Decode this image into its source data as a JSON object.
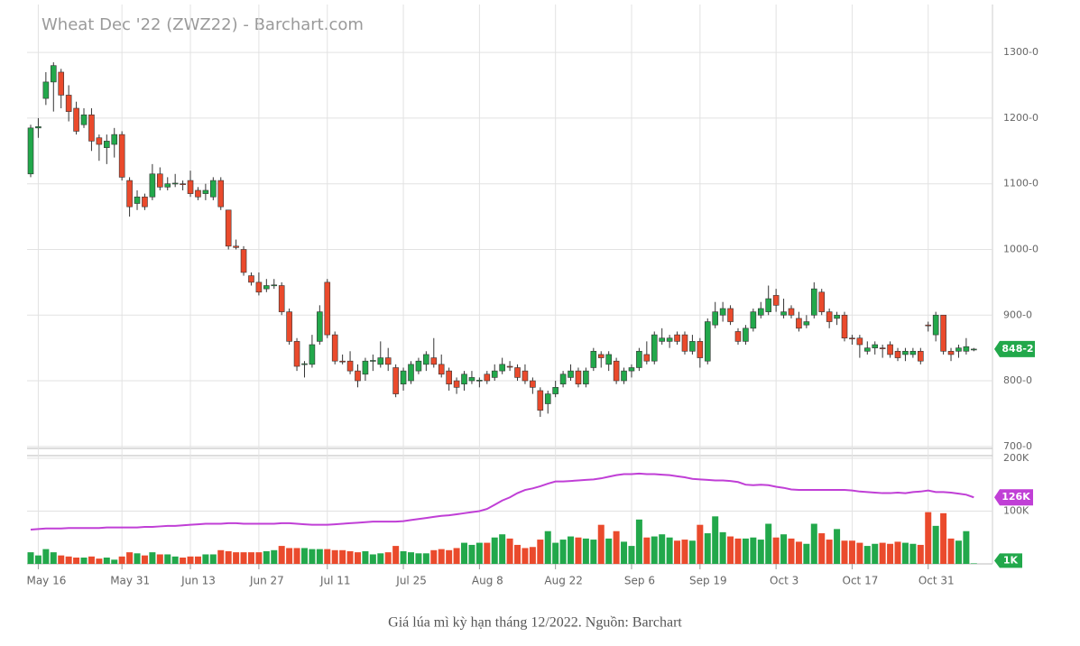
{
  "chart_data": [
    {
      "type": "candlestick",
      "title": "Wheat Dec '22 (ZWZ22) - Barchart.com",
      "categories": [
        null,
        "May 16",
        null,
        null,
        null,
        null,
        null,
        null,
        null,
        null,
        null,
        null,
        "May 31",
        null,
        null,
        null,
        null,
        null,
        null,
        null,
        null,
        "Jun 13",
        null,
        null,
        null,
        null,
        null,
        null,
        null,
        null,
        "Jun 27",
        null,
        null,
        null,
        null,
        null,
        null,
        null,
        null,
        "Jul 11",
        null,
        null,
        null,
        null,
        null,
        null,
        null,
        null,
        null,
        "Jul 25",
        null,
        null,
        null,
        null,
        null,
        null,
        null,
        null,
        null,
        "Aug 8",
        null,
        null,
        null,
        null,
        null,
        null,
        null,
        null,
        null,
        "Aug 22",
        null,
        null,
        null,
        null,
        null,
        null,
        null,
        null,
        null,
        "Sep 6",
        null,
        null,
        null,
        null,
        null,
        null,
        null,
        null,
        "Sep 19",
        null,
        null,
        null,
        null,
        null,
        null,
        null,
        null,
        null,
        "Oct 3",
        null,
        null,
        null,
        null,
        null,
        null,
        null,
        null,
        null,
        "Oct 17",
        null,
        null,
        null,
        null,
        null,
        null,
        null,
        null,
        null,
        "Oct 31",
        null,
        null,
        null,
        null,
        null,
        null
      ],
      "open": [
        1115,
        1185,
        1230,
        1255,
        1270,
        1235,
        1215,
        1190,
        1205,
        1170,
        1155,
        1160,
        1175,
        1105,
        1070,
        1080,
        1080,
        1115,
        1095,
        1100,
        1100,
        1105,
        1090,
        1085,
        1080,
        1105,
        1060,
        1005,
        1000,
        960,
        950,
        940,
        945,
        945,
        905,
        860,
        825,
        825,
        860,
        950,
        870,
        830,
        830,
        815,
        810,
        830,
        825,
        835,
        820,
        795,
        800,
        815,
        825,
        835,
        825,
        815,
        800,
        795,
        800,
        800,
        810,
        805,
        815,
        822,
        820,
        815,
        800,
        785,
        765,
        780,
        795,
        805,
        815,
        795,
        820,
        840,
        825,
        830,
        800,
        815,
        820,
        840,
        830,
        860,
        860,
        870,
        870,
        845,
        860,
        830,
        885,
        900,
        910,
        875,
        860,
        880,
        900,
        905,
        930,
        900,
        910,
        895,
        885,
        900,
        935,
        905,
        895,
        900,
        865,
        865,
        845,
        850,
        850,
        855,
        845,
        840,
        840,
        845,
        885,
        870,
        900,
        845,
        845,
        845,
        848
      ],
      "high": [
        1190,
        1200,
        1270,
        1285,
        1275,
        1250,
        1225,
        1215,
        1215,
        1175,
        1175,
        1185,
        1180,
        1110,
        1090,
        1085,
        1130,
        1125,
        1110,
        1115,
        1105,
        1120,
        1095,
        1100,
        1110,
        1110,
        1060,
        1015,
        1005,
        965,
        965,
        955,
        955,
        950,
        910,
        865,
        830,
        870,
        915,
        955,
        875,
        840,
        845,
        825,
        835,
        840,
        860,
        850,
        825,
        820,
        830,
        835,
        845,
        865,
        840,
        820,
        805,
        815,
        815,
        805,
        815,
        825,
        835,
        830,
        825,
        825,
        805,
        790,
        785,
        800,
        815,
        825,
        820,
        820,
        850,
        845,
        845,
        835,
        820,
        825,
        850,
        860,
        875,
        880,
        870,
        875,
        875,
        870,
        865,
        895,
        920,
        920,
        915,
        880,
        885,
        910,
        920,
        945,
        940,
        925,
        915,
        905,
        900,
        950,
        940,
        910,
        905,
        905,
        870,
        870,
        860,
        860,
        855,
        860,
        850,
        850,
        850,
        850,
        890,
        905,
        900,
        850,
        855,
        865,
        850
      ],
      "low": [
        1110,
        1170,
        1220,
        1210,
        1215,
        1195,
        1175,
        1185,
        1150,
        1135,
        1130,
        1140,
        1105,
        1050,
        1060,
        1060,
        1075,
        1090,
        1090,
        1095,
        1090,
        1080,
        1075,
        1075,
        1075,
        1060,
        1000,
        1000,
        960,
        945,
        930,
        935,
        940,
        900,
        855,
        815,
        805,
        820,
        855,
        865,
        825,
        825,
        810,
        790,
        800,
        815,
        820,
        815,
        775,
        785,
        795,
        810,
        815,
        820,
        805,
        785,
        780,
        785,
        795,
        790,
        795,
        800,
        810,
        815,
        800,
        795,
        780,
        745,
        750,
        775,
        790,
        800,
        790,
        790,
        815,
        820,
        815,
        795,
        795,
        805,
        815,
        825,
        825,
        855,
        850,
        855,
        840,
        840,
        820,
        825,
        880,
        890,
        885,
        855,
        855,
        875,
        895,
        900,
        905,
        895,
        895,
        875,
        880,
        895,
        900,
        880,
        885,
        860,
        855,
        835,
        840,
        840,
        835,
        835,
        830,
        830,
        835,
        825,
        875,
        860,
        840,
        830,
        835,
        840,
        845
      ],
      "close": [
        1185,
        1187,
        1255,
        1280,
        1235,
        1210,
        1180,
        1205,
        1165,
        1160,
        1165,
        1175,
        1110,
        1065,
        1080,
        1065,
        1115,
        1095,
        1100,
        1101,
        1099,
        1085,
        1080,
        1090,
        1105,
        1065,
        1005,
        1003,
        965,
        950,
        935,
        945,
        946,
        905,
        860,
        822,
        826,
        855,
        905,
        870,
        830,
        829,
        815,
        800,
        830,
        831,
        835,
        825,
        780,
        815,
        825,
        830,
        840,
        825,
        810,
        795,
        790,
        810,
        805,
        801,
        800,
        815,
        825,
        821,
        805,
        800,
        790,
        755,
        780,
        790,
        810,
        815,
        795,
        815,
        845,
        835,
        840,
        800,
        815,
        820,
        845,
        830,
        870,
        865,
        865,
        860,
        845,
        860,
        835,
        890,
        905,
        910,
        890,
        860,
        880,
        905,
        910,
        925,
        915,
        905,
        900,
        880,
        890,
        940,
        905,
        890,
        900,
        865,
        864,
        855,
        850,
        855,
        849,
        840,
        835,
        845,
        845,
        830,
        884,
        900,
        845,
        840,
        850,
        852,
        848.25
      ],
      "last_label": "848-2",
      "up_color": "#22a84b",
      "down_color": "#ea4a2c",
      "ylim": [
        697,
        1373
      ],
      "yticks": [
        {
          "value": 700,
          "label": "700-0"
        },
        {
          "value": 800,
          "label": "800-0"
        },
        {
          "value": 900,
          "label": "900-0"
        },
        {
          "value": 1000,
          "label": "1000-0"
        },
        {
          "value": 1100,
          "label": "1100-0"
        },
        {
          "value": 1200,
          "label": "1200-0"
        },
        {
          "value": 1300,
          "label": "1300-0"
        }
      ],
      "grid": true
    },
    {
      "type": "volume",
      "series": [
        {
          "kind": "bar",
          "values": [
            22,
            16,
            28,
            22,
            16,
            14,
            12,
            12,
            14,
            10,
            12,
            8,
            14,
            22,
            20,
            16,
            22,
            18,
            18,
            14,
            12,
            14,
            14,
            18,
            18,
            26,
            24,
            22,
            22,
            22,
            22,
            24,
            26,
            34,
            30,
            30,
            30,
            28,
            28,
            28,
            26,
            26,
            24,
            22,
            24,
            18,
            20,
            22,
            34,
            24,
            22,
            20,
            20,
            26,
            28,
            26,
            30,
            40,
            36,
            40,
            40,
            50,
            56,
            48,
            36,
            30,
            32,
            46,
            62,
            40,
            46,
            52,
            50,
            48,
            46,
            74,
            48,
            62,
            42,
            34,
            84,
            50,
            52,
            56,
            50,
            44,
            46,
            44,
            74,
            58,
            90,
            60,
            52,
            48,
            48,
            50,
            46,
            76,
            50,
            56,
            48,
            42,
            38,
            76,
            58,
            46,
            66,
            44,
            44,
            40,
            34,
            38,
            40,
            38,
            42,
            40,
            38,
            36,
            98,
            72,
            96,
            48,
            44,
            62,
            1
          ],
          "last_label": "1K",
          "color": "#22a84b"
        },
        {
          "kind": "line",
          "color": "#c03fd6",
          "values": [
            65,
            66,
            67,
            67,
            67,
            68,
            68,
            68,
            68,
            68,
            69,
            69,
            69,
            69,
            69,
            70,
            70,
            71,
            72,
            72,
            73,
            74,
            75,
            76,
            76,
            76,
            77,
            77,
            76,
            76,
            76,
            76,
            76,
            77,
            77,
            76,
            75,
            74,
            74,
            74,
            75,
            76,
            77,
            78,
            79,
            80,
            80,
            80,
            80,
            81,
            83,
            85,
            87,
            89,
            91,
            92,
            94,
            96,
            98,
            100,
            104,
            112,
            120,
            126,
            134,
            140,
            143,
            147,
            152,
            156,
            156,
            157,
            158,
            159,
            160,
            162,
            165,
            168,
            170,
            170,
            171,
            170,
            170,
            169,
            168,
            166,
            164,
            161,
            160,
            159,
            158,
            158,
            157,
            155,
            150,
            149,
            150,
            149,
            146,
            144,
            141,
            140,
            140,
            140,
            140,
            140,
            140,
            140,
            139,
            137,
            136,
            135,
            134,
            134,
            135,
            134,
            136,
            137,
            139,
            136,
            136,
            135,
            133,
            131,
            126
          ],
          "last_label": "126K"
        }
      ],
      "ylim": [
        0,
        205
      ],
      "yticks": [
        {
          "value": 100,
          "label": "100K"
        },
        {
          "value": 200,
          "label": "200K"
        }
      ],
      "grid": true
    }
  ],
  "caption": "Giá lúa mì kỳ hạn tháng 12/2022. Nguồn: Barchart"
}
